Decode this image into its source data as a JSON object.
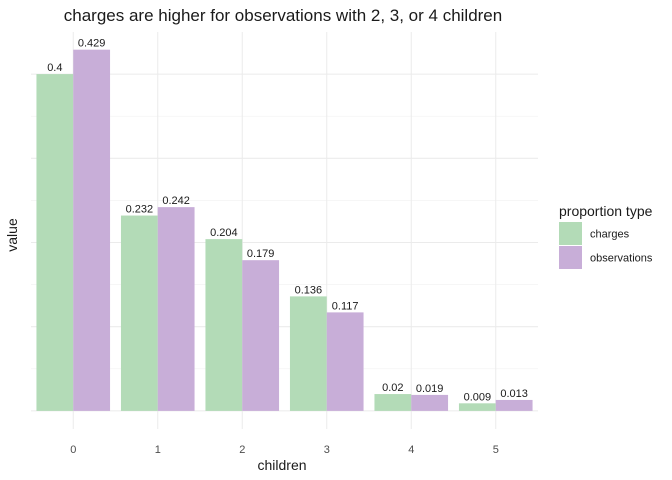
{
  "chart_data": {
    "type": "bar",
    "title": "charges are higher for observations with 2, 3, or 4 children",
    "xlabel": "children",
    "ylabel": "value",
    "categories": [
      "0",
      "1",
      "2",
      "3",
      "4",
      "5"
    ],
    "series": [
      {
        "name": "charges",
        "color": "#b3dbb7",
        "values": [
          0.4,
          0.232,
          0.204,
          0.136,
          0.02,
          0.009
        ],
        "labels": [
          "0.4",
          "0.232",
          "0.204",
          "0.136",
          "0.02",
          "0.009"
        ]
      },
      {
        "name": "observations",
        "color": "#c8aed8",
        "values": [
          0.429,
          0.242,
          0.179,
          0.117,
          0.019,
          0.013
        ],
        "labels": [
          "0.429",
          "0.242",
          "0.179",
          "0.117",
          "0.019",
          "0.013"
        ]
      }
    ],
    "ylim": [
      -0.0215,
      0.45
    ],
    "y_tick_labels_shown": false,
    "grid": true,
    "legend": {
      "title": "proportion type",
      "position": "right"
    }
  }
}
